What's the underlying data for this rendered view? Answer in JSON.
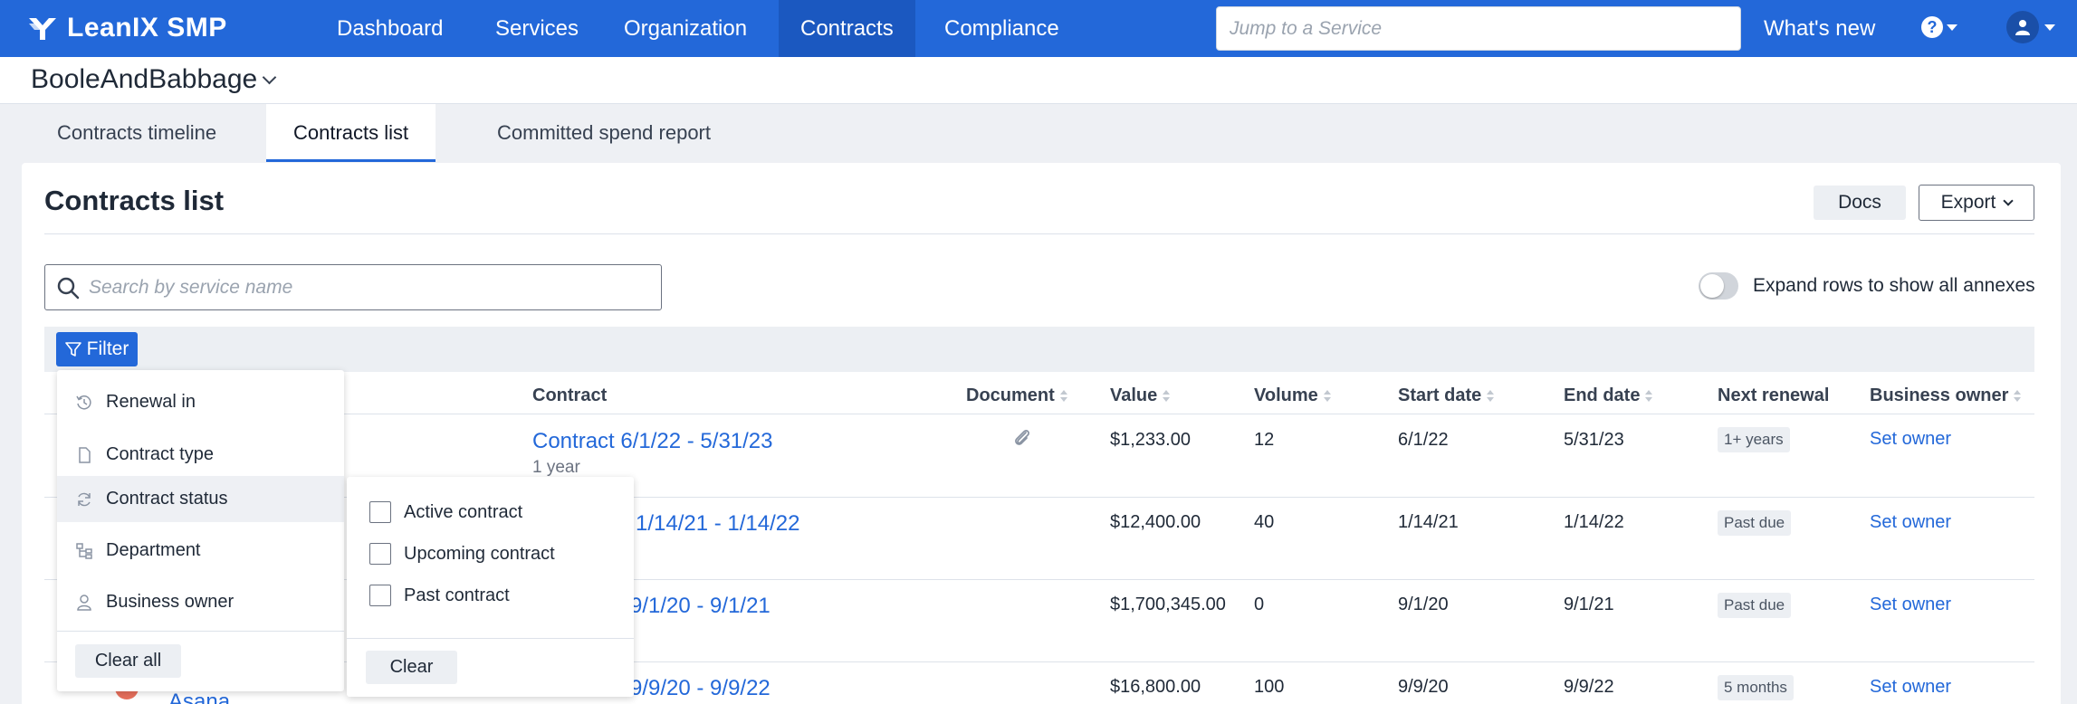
{
  "app": {
    "name": "LeanIX SMP",
    "brand_color": "#2368d9"
  },
  "nav": {
    "items": [
      {
        "label": "Dashboard"
      },
      {
        "label": "Services"
      },
      {
        "label": "Organization"
      },
      {
        "label": "Contracts",
        "active": true
      },
      {
        "label": "Compliance"
      }
    ],
    "search_placeholder": "Jump to a Service",
    "whats_new": "What's new",
    "help_glyph": "?"
  },
  "workspace": {
    "name": "BooleAndBabbage"
  },
  "tabs": [
    {
      "label": "Contracts timeline"
    },
    {
      "label": "Contracts list",
      "active": true
    },
    {
      "label": "Committed spend report"
    }
  ],
  "page": {
    "title": "Contracts list",
    "docs_label": "Docs",
    "export_label": "Export",
    "search_placeholder": "Search by service name",
    "toggle_label": "Expand rows to show all annexes",
    "toggle_on": false,
    "filter_label": "Filter"
  },
  "table": {
    "columns": [
      {
        "label": "Contract",
        "sortable": false
      },
      {
        "label": "Document",
        "sortable": true
      },
      {
        "label": "Value",
        "sortable": true
      },
      {
        "label": "Volume",
        "sortable": true
      },
      {
        "label": "Start date",
        "sortable": true
      },
      {
        "label": "End date",
        "sortable": true
      },
      {
        "label": "Next renewal",
        "sortable": false
      },
      {
        "label": "Business owner",
        "sortable": true
      }
    ],
    "rows": [
      {
        "service": "",
        "contract": "Contract 6/1/22 - 5/31/23",
        "duration": "1 year",
        "has_document": true,
        "value": "$1,233.00",
        "volume": "12",
        "start": "6/1/22",
        "end": "5/31/23",
        "renewal": "1+ years",
        "owner": "Set owner"
      },
      {
        "service": "",
        "contract": "1/14/21 - 1/14/22",
        "duration": "",
        "has_document": false,
        "value": "$12,400.00",
        "volume": "40",
        "start": "1/14/21",
        "end": "1/14/22",
        "renewal": "Past due",
        "owner": "Set owner"
      },
      {
        "service": "",
        "contract": "9/1/20 - 9/1/21",
        "duration": "",
        "has_document": false,
        "value": "$1,700,345.00",
        "volume": "0",
        "start": "9/1/20",
        "end": "9/1/21",
        "renewal": "Past due",
        "owner": "Set owner"
      },
      {
        "service": "Asana",
        "contract": "9/9/20 - 9/9/22",
        "duration": "",
        "has_document": false,
        "value": "$16,800.00",
        "volume": "100",
        "start": "9/9/20",
        "end": "9/9/22",
        "renewal": "5 months",
        "owner": "Set owner"
      }
    ]
  },
  "filter_menu": {
    "items": [
      {
        "label": "Renewal in",
        "icon": "history-icon"
      },
      {
        "label": "Contract type",
        "icon": "document-icon"
      },
      {
        "label": "Contract status",
        "icon": "refresh-icon",
        "active": true
      },
      {
        "label": "Department",
        "icon": "hierarchy-icon"
      },
      {
        "label": "Business owner",
        "icon": "person-icon"
      }
    ],
    "clear_all": "Clear all"
  },
  "status_submenu": {
    "options": [
      {
        "label": "Active contract",
        "checked": false
      },
      {
        "label": "Upcoming contract",
        "checked": false
      },
      {
        "label": "Past contract",
        "checked": false
      }
    ],
    "clear": "Clear"
  }
}
